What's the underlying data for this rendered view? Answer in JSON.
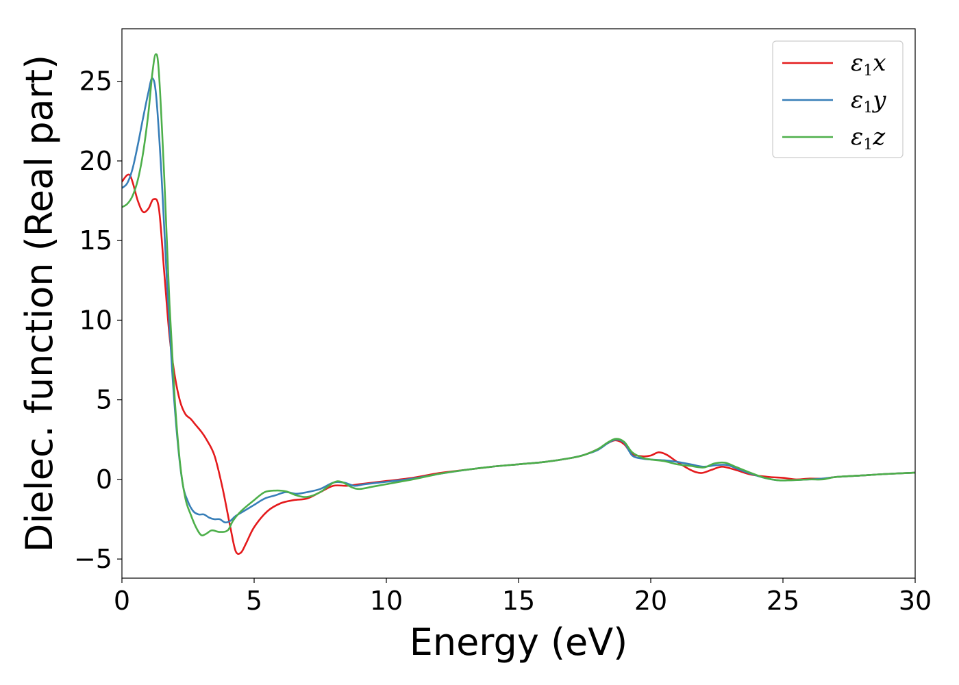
{
  "chart_data": {
    "type": "line",
    "title": "",
    "xlabel": "Energy (eV)",
    "ylabel": "Dielec. function (Real part)",
    "xlim": [
      0,
      30
    ],
    "ylim": [
      -6.2,
      28.3
    ],
    "xticks": [
      0,
      5,
      10,
      15,
      20,
      25,
      30
    ],
    "yticks": [
      -5,
      0,
      5,
      10,
      15,
      20,
      25
    ],
    "ytick_labels": [
      "−5",
      "0",
      "5",
      "10",
      "15",
      "20",
      "25"
    ],
    "grid": false,
    "legend_position": "top-right",
    "series": [
      {
        "name": "ε₁x",
        "legend_base": "ε",
        "legend_sub": "1",
        "legend_var": "x",
        "color": "#e41a1c",
        "points": [
          [
            0,
            18.7
          ],
          [
            0.3,
            19.1
          ],
          [
            0.6,
            17.5
          ],
          [
            0.8,
            16.8
          ],
          [
            1.0,
            17.0
          ],
          [
            1.2,
            17.6
          ],
          [
            1.4,
            17.0
          ],
          [
            1.6,
            13.0
          ],
          [
            1.8,
            9.0
          ],
          [
            2.0,
            6.5
          ],
          [
            2.2,
            4.9
          ],
          [
            2.4,
            4.1
          ],
          [
            2.6,
            3.8
          ],
          [
            2.8,
            3.4
          ],
          [
            3.0,
            3.0
          ],
          [
            3.2,
            2.5
          ],
          [
            3.5,
            1.5
          ],
          [
            3.8,
            -0.5
          ],
          [
            4.1,
            -3.0
          ],
          [
            4.3,
            -4.5
          ],
          [
            4.5,
            -4.6
          ],
          [
            4.7,
            -4.0
          ],
          [
            5.0,
            -3.0
          ],
          [
            5.5,
            -2.0
          ],
          [
            6.0,
            -1.5
          ],
          [
            6.5,
            -1.3
          ],
          [
            7.0,
            -1.2
          ],
          [
            7.5,
            -0.8
          ],
          [
            8.0,
            -0.4
          ],
          [
            8.5,
            -0.4
          ],
          [
            9.0,
            -0.3
          ],
          [
            10.0,
            -0.1
          ],
          [
            11.0,
            0.1
          ],
          [
            12.0,
            0.4
          ],
          [
            13.0,
            0.6
          ],
          [
            14.0,
            0.8
          ],
          [
            15.0,
            0.95
          ],
          [
            16.0,
            1.1
          ],
          [
            17.0,
            1.35
          ],
          [
            17.5,
            1.55
          ],
          [
            18.0,
            1.9
          ],
          [
            18.4,
            2.3
          ],
          [
            18.7,
            2.45
          ],
          [
            19.0,
            2.2
          ],
          [
            19.3,
            1.6
          ],
          [
            19.7,
            1.45
          ],
          [
            20.0,
            1.5
          ],
          [
            20.3,
            1.7
          ],
          [
            20.6,
            1.55
          ],
          [
            21.0,
            1.1
          ],
          [
            21.5,
            0.6
          ],
          [
            21.9,
            0.4
          ],
          [
            22.3,
            0.6
          ],
          [
            22.7,
            0.8
          ],
          [
            23.2,
            0.6
          ],
          [
            23.8,
            0.3
          ],
          [
            24.5,
            0.15
          ],
          [
            25.0,
            0.1
          ],
          [
            25.5,
            0.0
          ],
          [
            26.0,
            0.05
          ],
          [
            26.5,
            0.05
          ],
          [
            27.0,
            0.15
          ],
          [
            28.0,
            0.25
          ],
          [
            29.0,
            0.35
          ],
          [
            30.0,
            0.42
          ]
        ]
      },
      {
        "name": "ε₁y",
        "legend_base": "ε",
        "legend_sub": "1",
        "legend_var": "y",
        "color": "#377eb8",
        "points": [
          [
            0,
            18.3
          ],
          [
            0.2,
            18.6
          ],
          [
            0.4,
            19.5
          ],
          [
            0.6,
            21.0
          ],
          [
            0.8,
            22.7
          ],
          [
            1.0,
            24.3
          ],
          [
            1.15,
            25.2
          ],
          [
            1.3,
            24.0
          ],
          [
            1.5,
            19.0
          ],
          [
            1.7,
            12.5
          ],
          [
            1.9,
            6.8
          ],
          [
            2.1,
            2.5
          ],
          [
            2.3,
            -0.3
          ],
          [
            2.5,
            -1.4
          ],
          [
            2.7,
            -2.0
          ],
          [
            2.9,
            -2.2
          ],
          [
            3.1,
            -2.2
          ],
          [
            3.3,
            -2.4
          ],
          [
            3.5,
            -2.5
          ],
          [
            3.7,
            -2.5
          ],
          [
            3.9,
            -2.7
          ],
          [
            4.1,
            -2.6
          ],
          [
            4.3,
            -2.3
          ],
          [
            4.6,
            -2.0
          ],
          [
            5.0,
            -1.6
          ],
          [
            5.4,
            -1.2
          ],
          [
            5.8,
            -1.0
          ],
          [
            6.2,
            -0.8
          ],
          [
            6.6,
            -0.9
          ],
          [
            7.0,
            -0.8
          ],
          [
            7.5,
            -0.6
          ],
          [
            8.0,
            -0.2
          ],
          [
            8.4,
            -0.2
          ],
          [
            8.8,
            -0.4
          ],
          [
            9.2,
            -0.3
          ],
          [
            10.0,
            -0.15
          ],
          [
            11.0,
            0.05
          ],
          [
            12.0,
            0.35
          ],
          [
            13.0,
            0.6
          ],
          [
            14.0,
            0.8
          ],
          [
            15.0,
            0.95
          ],
          [
            16.0,
            1.1
          ],
          [
            17.0,
            1.35
          ],
          [
            17.5,
            1.55
          ],
          [
            18.0,
            1.85
          ],
          [
            18.4,
            2.3
          ],
          [
            18.7,
            2.5
          ],
          [
            19.0,
            2.3
          ],
          [
            19.3,
            1.5
          ],
          [
            19.7,
            1.3
          ],
          [
            20.0,
            1.25
          ],
          [
            20.5,
            1.2
          ],
          [
            21.0,
            1.1
          ],
          [
            21.5,
            0.95
          ],
          [
            22.0,
            0.8
          ],
          [
            22.5,
            0.9
          ],
          [
            22.9,
            0.9
          ],
          [
            23.3,
            0.65
          ],
          [
            23.8,
            0.35
          ],
          [
            24.3,
            0.1
          ],
          [
            24.8,
            -0.05
          ],
          [
            25.3,
            -0.05
          ],
          [
            26.0,
            0.0
          ],
          [
            26.5,
            0.05
          ],
          [
            27.0,
            0.15
          ],
          [
            28.0,
            0.25
          ],
          [
            29.0,
            0.35
          ],
          [
            30.0,
            0.42
          ]
        ]
      },
      {
        "name": "ε₁z",
        "legend_base": "ε",
        "legend_sub": "1",
        "legend_var": "z",
        "color": "#4daf4a",
        "points": [
          [
            0,
            17.1
          ],
          [
            0.2,
            17.3
          ],
          [
            0.4,
            17.8
          ],
          [
            0.6,
            18.8
          ],
          [
            0.8,
            20.5
          ],
          [
            1.0,
            23.0
          ],
          [
            1.15,
            25.5
          ],
          [
            1.28,
            26.7
          ],
          [
            1.4,
            25.5
          ],
          [
            1.6,
            19.0
          ],
          [
            1.8,
            11.0
          ],
          [
            2.0,
            5.0
          ],
          [
            2.2,
            1.0
          ],
          [
            2.4,
            -1.2
          ],
          [
            2.6,
            -2.2
          ],
          [
            2.8,
            -3.0
          ],
          [
            3.0,
            -3.5
          ],
          [
            3.2,
            -3.4
          ],
          [
            3.4,
            -3.2
          ],
          [
            3.7,
            -3.3
          ],
          [
            4.0,
            -3.2
          ],
          [
            4.2,
            -2.6
          ],
          [
            4.5,
            -2.0
          ],
          [
            5.0,
            -1.3
          ],
          [
            5.4,
            -0.8
          ],
          [
            5.8,
            -0.7
          ],
          [
            6.2,
            -0.75
          ],
          [
            6.6,
            -1.0
          ],
          [
            7.0,
            -1.1
          ],
          [
            7.5,
            -0.8
          ],
          [
            8.0,
            -0.2
          ],
          [
            8.3,
            -0.15
          ],
          [
            8.7,
            -0.5
          ],
          [
            9.0,
            -0.6
          ],
          [
            9.5,
            -0.45
          ],
          [
            10.0,
            -0.3
          ],
          [
            11.0,
            0.0
          ],
          [
            12.0,
            0.35
          ],
          [
            13.0,
            0.6
          ],
          [
            14.0,
            0.8
          ],
          [
            15.0,
            0.95
          ],
          [
            16.0,
            1.1
          ],
          [
            17.0,
            1.35
          ],
          [
            17.5,
            1.55
          ],
          [
            18.0,
            1.9
          ],
          [
            18.4,
            2.35
          ],
          [
            18.7,
            2.55
          ],
          [
            19.0,
            2.35
          ],
          [
            19.3,
            1.7
          ],
          [
            19.7,
            1.35
          ],
          [
            20.0,
            1.25
          ],
          [
            20.5,
            1.15
          ],
          [
            21.0,
            0.95
          ],
          [
            21.5,
            0.85
          ],
          [
            22.0,
            0.75
          ],
          [
            22.4,
            1.0
          ],
          [
            22.8,
            1.05
          ],
          [
            23.2,
            0.8
          ],
          [
            23.8,
            0.4
          ],
          [
            24.3,
            0.1
          ],
          [
            24.8,
            -0.05
          ],
          [
            25.3,
            -0.05
          ],
          [
            26.0,
            0.0
          ],
          [
            26.5,
            0.0
          ],
          [
            27.0,
            0.15
          ],
          [
            28.0,
            0.25
          ],
          [
            29.0,
            0.35
          ],
          [
            30.0,
            0.42
          ]
        ]
      }
    ]
  }
}
